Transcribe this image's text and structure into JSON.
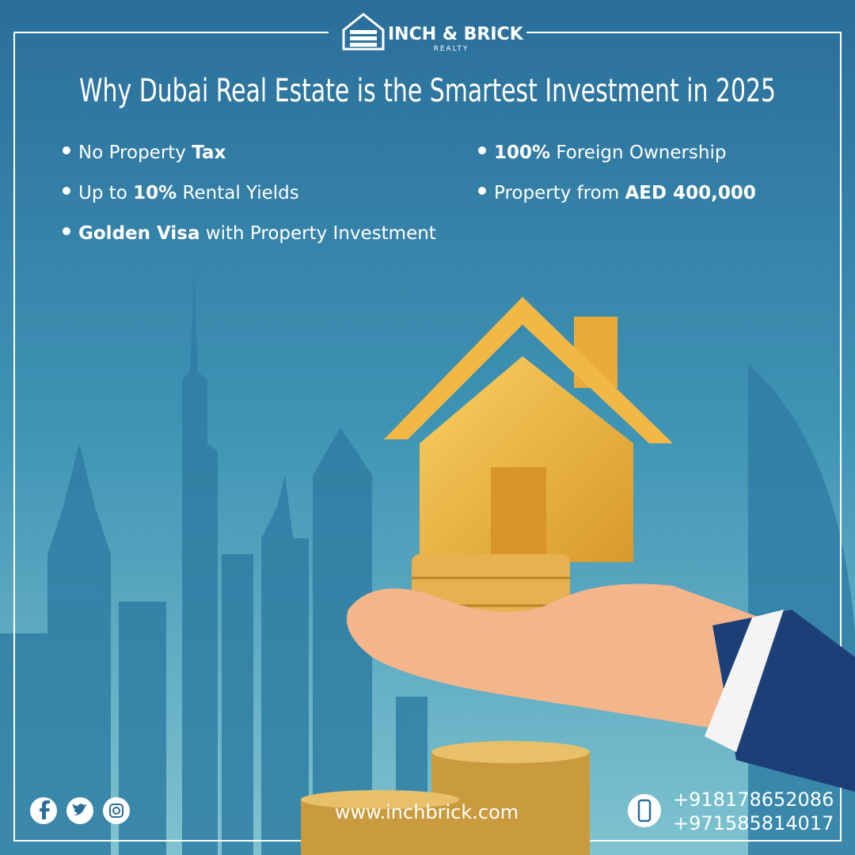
{
  "brand": {
    "name": "INCH & BRICK",
    "tagline": "REALTY"
  },
  "title": "Why Dubai Real Estate is the Smartest Investment in 2025",
  "bullets": [
    {
      "segments": [
        {
          "text": "No Property ",
          "bold": false
        },
        {
          "text": "Tax",
          "bold": true
        }
      ]
    },
    {
      "segments": [
        {
          "text": "100%",
          "bold": true
        },
        {
          "text": " Foreign Ownership",
          "bold": false
        }
      ]
    },
    {
      "segments": [
        {
          "text": "Up to ",
          "bold": false
        },
        {
          "text": "10%",
          "bold": true
        },
        {
          "text": " Rental Yields",
          "bold": false
        }
      ]
    },
    {
      "segments": [
        {
          "text": "Property from ",
          "bold": false
        },
        {
          "text": "AED 400,000",
          "bold": true
        }
      ]
    },
    {
      "segments": [
        {
          "text": "Golden Visa",
          "bold": true
        },
        {
          "text": " with Property Investment",
          "bold": false
        }
      ]
    }
  ],
  "footer": {
    "website": "www.inchbrick.com",
    "phones": [
      "+918178652086",
      "+971585814017"
    ]
  }
}
